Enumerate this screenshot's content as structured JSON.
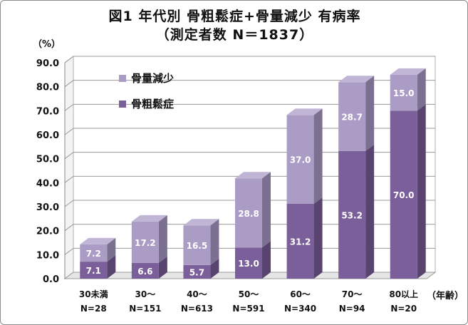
{
  "chart_data": {
    "type": "bar",
    "stacked": true,
    "three_d": true,
    "title": "図1 年代別 骨粗鬆症+骨量減少 有病率",
    "subtitle": "（測定者数 N＝1837）",
    "ylabel": "（%）",
    "xlabel": "（年齢）",
    "ylim": [
      0,
      90
    ],
    "yticks": [
      "0.0",
      "10.0",
      "20.0",
      "30.0",
      "40.0",
      "50.0",
      "60.0",
      "70.0",
      "80.0",
      "90.0"
    ],
    "grid": true,
    "legend_position": "top-left",
    "categories": [
      "30未満",
      "30～",
      "40～",
      "50～",
      "60～",
      "70～",
      "80以上"
    ],
    "category_counts": [
      "N=28",
      "N=151",
      "N=613",
      "N=591",
      "N=340",
      "N=94",
      "N=20"
    ],
    "series": [
      {
        "name": "骨粗鬆症",
        "values": [
          7.1,
          6.6,
          5.7,
          13.0,
          31.2,
          53.2,
          70.0
        ],
        "labels": [
          "7.1",
          "6.6",
          "5.7",
          "13.0",
          "31.2",
          "53.2",
          "70.0"
        ],
        "color": "#7b5f9a"
      },
      {
        "name": "骨量減少",
        "values": [
          7.2,
          17.2,
          16.5,
          28.8,
          37.0,
          28.7,
          15.0
        ],
        "labels": [
          "7.2",
          "17.2",
          "16.5",
          "28.8",
          "37.0",
          "28.7",
          "15.0"
        ],
        "color": "#ab9cc6"
      }
    ]
  }
}
